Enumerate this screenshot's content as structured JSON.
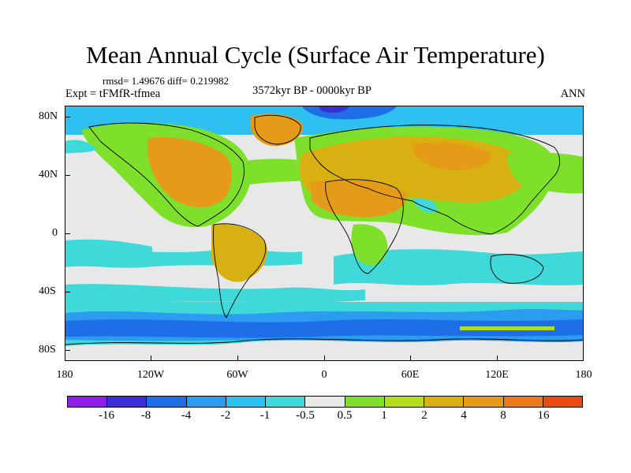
{
  "title": "Mean Annual Cycle (Surface Air Temperature)",
  "stats": "rmsd= 1.49676 diff= 0.219982",
  "experiment": "Expt = tFMfR-tfmea",
  "period": "3572kyr BP - 0000kyr BP",
  "season": "ANN",
  "map": {
    "lat_labels": [
      "80N",
      "40N",
      "0",
      "40S",
      "80S"
    ],
    "lon_labels": [
      "180",
      "120W",
      "60W",
      "0",
      "60E",
      "120E",
      "180"
    ]
  },
  "colorbar": {
    "labels": [
      "-16",
      "-8",
      "-4",
      "-2",
      "-1",
      "-0.5",
      "0.5",
      "1",
      "2",
      "4",
      "8",
      "16"
    ],
    "colors": [
      "#8e1ee8",
      "#3a2fd6",
      "#1e6ee8",
      "#2b9cf0",
      "#2ec0f0",
      "#3fd9d9",
      "#e8e8e8",
      "#7ee02a",
      "#b4df1f",
      "#d9b012",
      "#e59a18",
      "#ec7a18",
      "#e84a10"
    ]
  },
  "colors": {
    "background": "#e8e8e8",
    "strong_warm": "#e59a18",
    "warm": "#d9b012",
    "mild_warm": "#7ee02a",
    "mild_cool": "#3fd9d9",
    "cool": "#2b9cf0",
    "cold": "#1e6ee8"
  }
}
